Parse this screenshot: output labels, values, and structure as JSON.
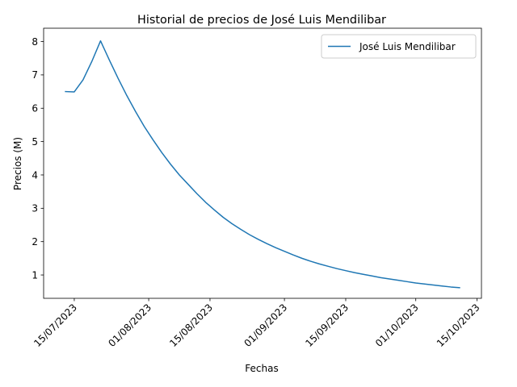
{
  "chart_data": {
    "type": "line",
    "title": "Historial de precios de José Luis Mendilibar",
    "xlabel": "Fechas",
    "ylabel": "Precios (M)",
    "xlim": [
      "2023-07-08",
      "2023-10-16"
    ],
    "ylim": [
      0.3,
      8.4
    ],
    "x_ticks": [
      "2023-07-15",
      "2023-08-01",
      "2023-08-15",
      "2023-09-01",
      "2023-09-15",
      "2023-10-01",
      "2023-10-15"
    ],
    "x_tick_labels": [
      "15/07/2023",
      "01/08/2023",
      "15/08/2023",
      "01/09/2023",
      "15/09/2023",
      "01/10/2023",
      "15/10/2023"
    ],
    "y_ticks": [
      1,
      2,
      3,
      4,
      5,
      6,
      7,
      8
    ],
    "y_tick_labels": [
      "1",
      "2",
      "3",
      "4",
      "5",
      "6",
      "7",
      "8"
    ],
    "legend_position": "upper right",
    "grid": false,
    "color": "#1f77b4",
    "series": [
      {
        "name": "José Luis Mendilibar",
        "x": [
          "2023-07-13",
          "2023-07-15",
          "2023-07-17",
          "2023-07-19",
          "2023-07-21",
          "2023-07-23",
          "2023-07-25",
          "2023-07-27",
          "2023-07-29",
          "2023-07-31",
          "2023-08-02",
          "2023-08-04",
          "2023-08-06",
          "2023-08-08",
          "2023-08-10",
          "2023-08-12",
          "2023-08-14",
          "2023-08-16",
          "2023-08-18",
          "2023-08-20",
          "2023-08-22",
          "2023-08-24",
          "2023-08-26",
          "2023-08-28",
          "2023-08-30",
          "2023-09-01",
          "2023-09-03",
          "2023-09-05",
          "2023-09-07",
          "2023-09-09",
          "2023-09-11",
          "2023-09-13",
          "2023-09-15",
          "2023-09-17",
          "2023-09-19",
          "2023-09-21",
          "2023-09-23",
          "2023-09-25",
          "2023-09-27",
          "2023-09-29",
          "2023-10-01",
          "2023-10-03",
          "2023-10-05",
          "2023-10-07",
          "2023-10-09",
          "2023-10-11"
        ],
        "values": [
          6.5,
          6.49,
          6.85,
          7.4,
          8.02,
          7.45,
          6.9,
          6.38,
          5.9,
          5.45,
          5.05,
          4.67,
          4.32,
          4.0,
          3.72,
          3.44,
          3.18,
          2.95,
          2.73,
          2.54,
          2.37,
          2.21,
          2.07,
          1.94,
          1.82,
          1.71,
          1.6,
          1.5,
          1.41,
          1.33,
          1.26,
          1.19,
          1.13,
          1.07,
          1.02,
          0.97,
          0.92,
          0.88,
          0.84,
          0.8,
          0.76,
          0.73,
          0.7,
          0.67,
          0.64,
          0.62
        ]
      }
    ]
  }
}
